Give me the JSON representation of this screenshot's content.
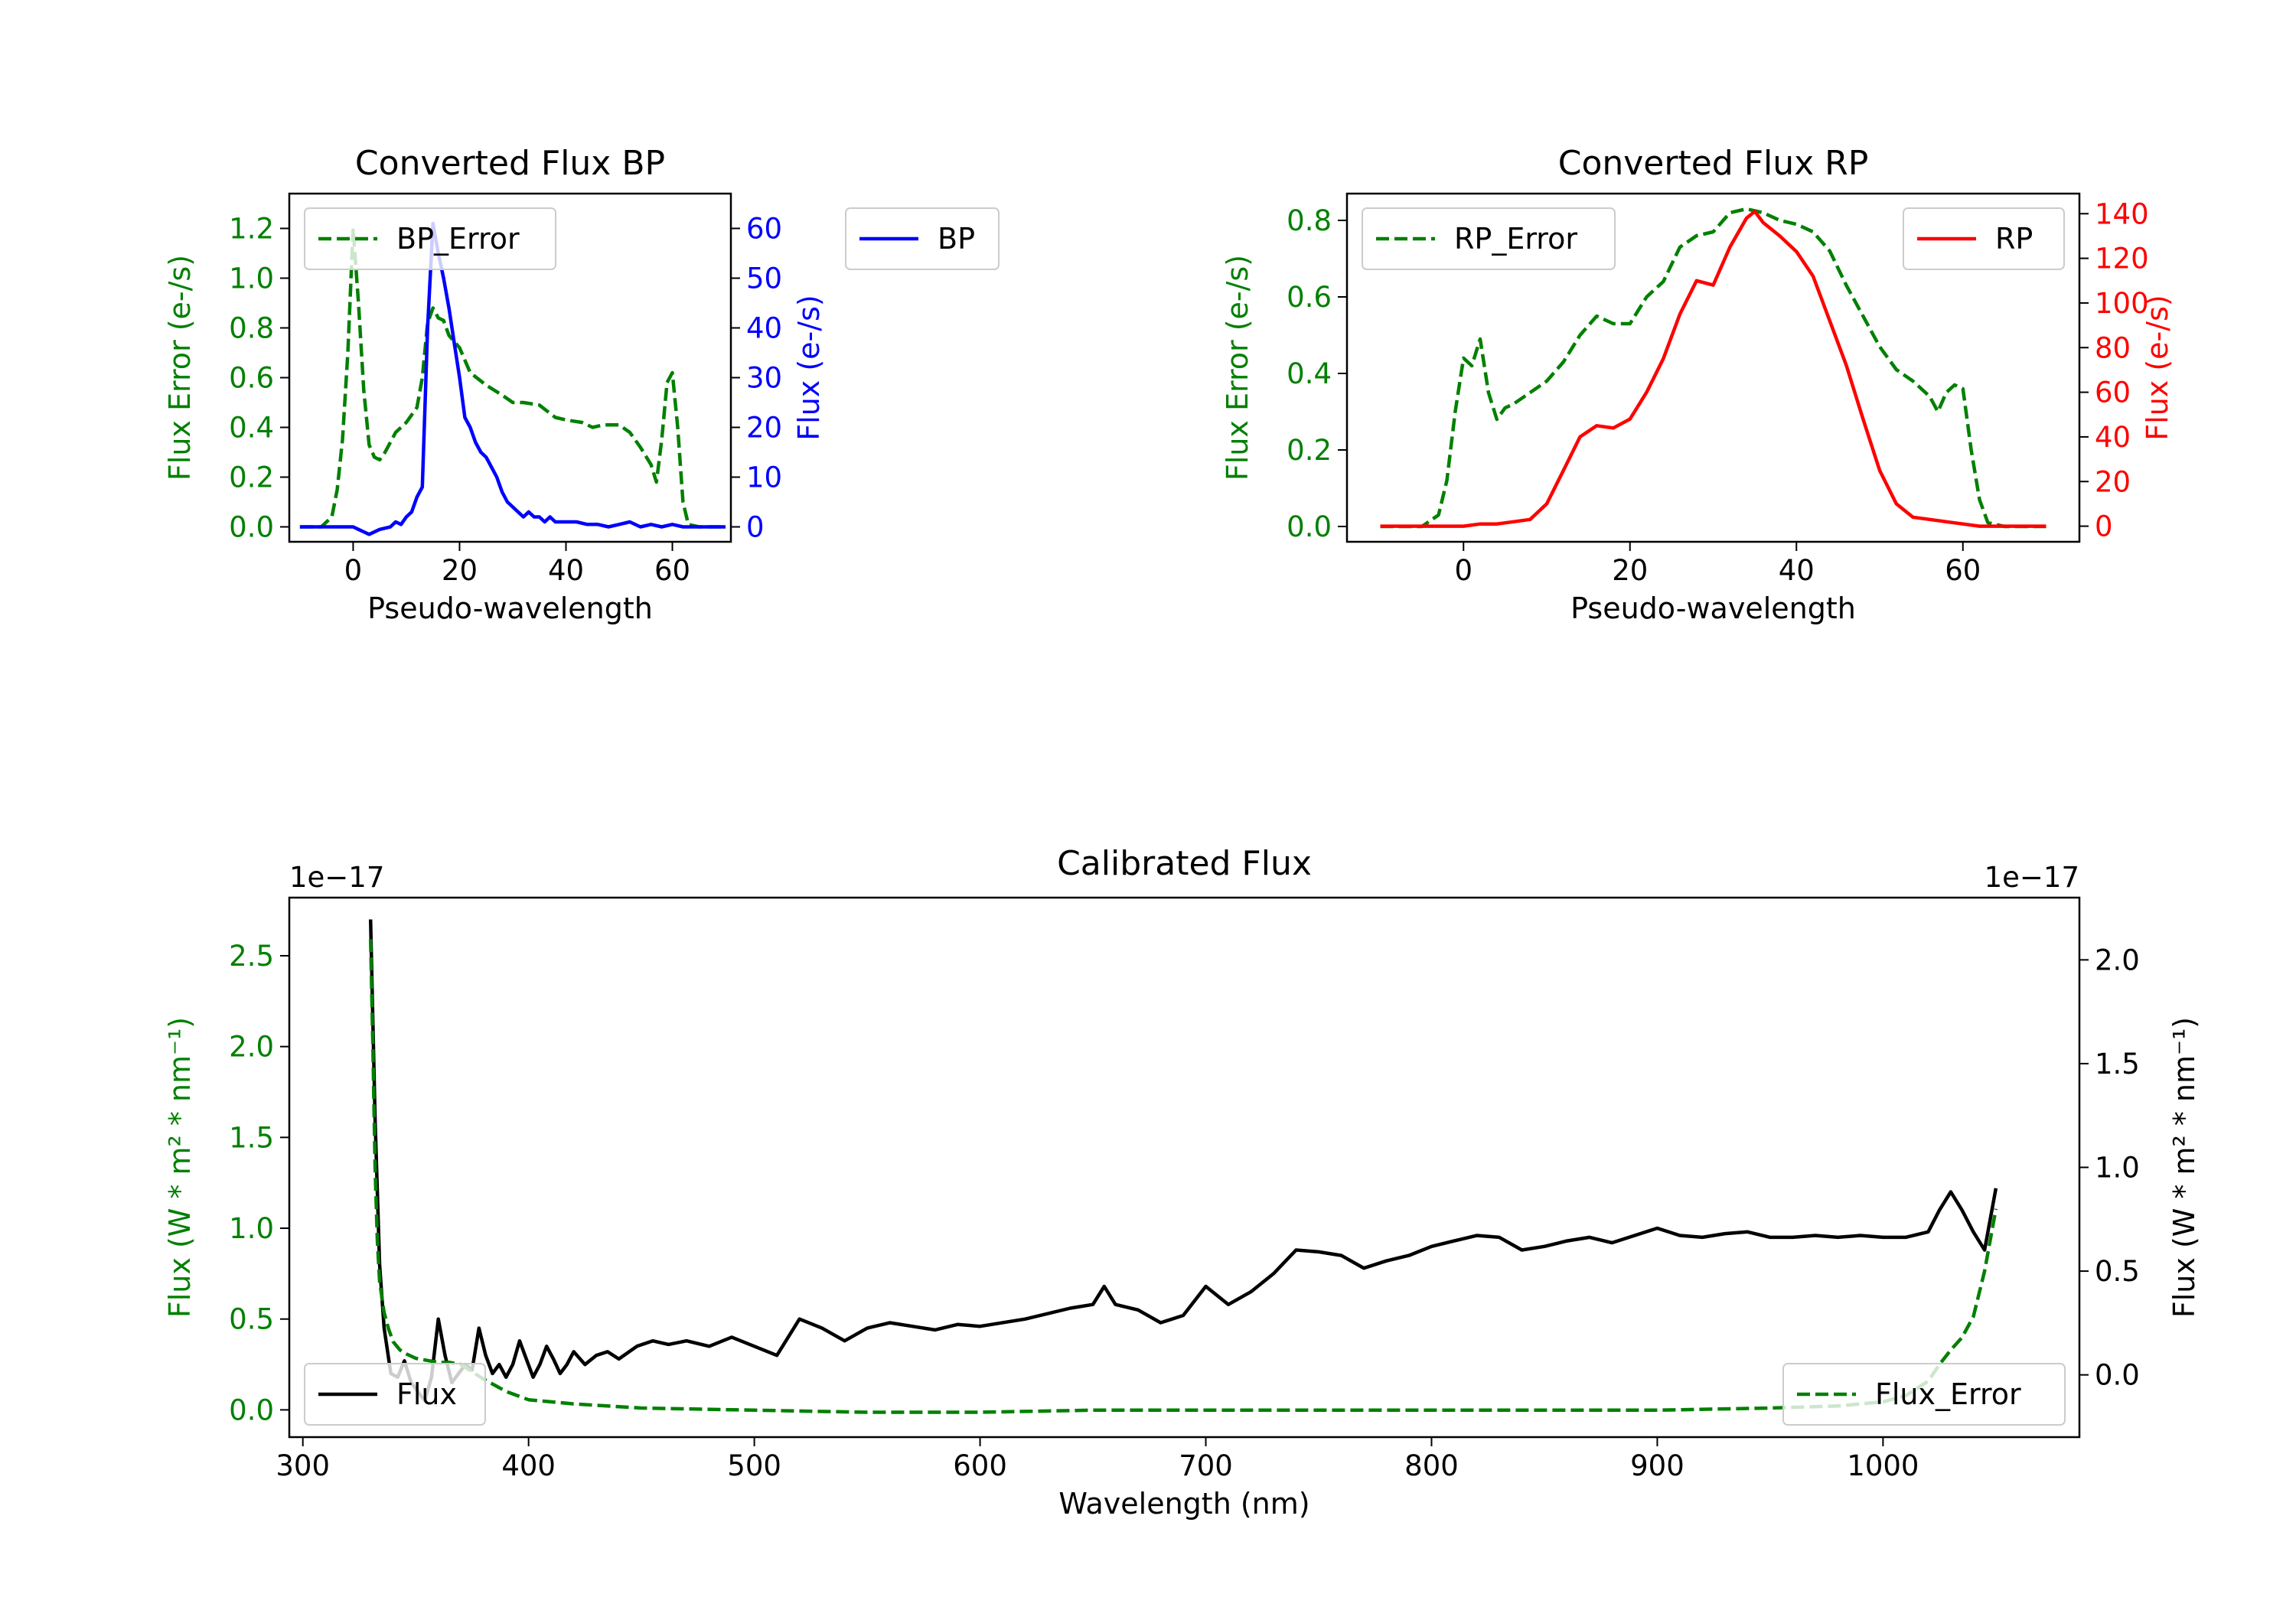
{
  "chart_data": [
    {
      "id": "bp",
      "type": "line",
      "title": "Converted Flux BP",
      "xlabel": "Pseudo-wavelength",
      "ylabel_left": "Flux Error (e-/s)",
      "ylabel_right": "Flux (e-/s)",
      "xlim": [
        -12,
        71
      ],
      "ylim_left": [
        -0.06,
        1.34
      ],
      "ylim_right": [
        -3,
        67
      ],
      "xticks": [
        0,
        20,
        40,
        60
      ],
      "yticks_left": [
        0.0,
        0.2,
        0.4,
        0.6,
        0.8,
        1.0,
        1.2
      ],
      "yticks_right": [
        0,
        10,
        20,
        30,
        40,
        50,
        60
      ],
      "left_color": "#008000",
      "right_color": "#0000ff",
      "legend_left": "BP_Error",
      "legend_right": "BP",
      "series": [
        {
          "name": "BP_Error",
          "axis": "left",
          "color": "#008000",
          "dash": true,
          "x": [
            -10,
            -6,
            -4,
            -3,
            -2,
            -1,
            0,
            1,
            2,
            3,
            4,
            5,
            6,
            8,
            10,
            12,
            13,
            14,
            15,
            16,
            17,
            18,
            20,
            22,
            25,
            28,
            30,
            32,
            35,
            38,
            40,
            43,
            45,
            47,
            50,
            52,
            54,
            56,
            57,
            58,
            59,
            60,
            61,
            62,
            63,
            65,
            70
          ],
          "y": [
            0.0,
            0.0,
            0.04,
            0.15,
            0.35,
            0.7,
            1.2,
            0.9,
            0.55,
            0.33,
            0.28,
            0.27,
            0.3,
            0.38,
            0.42,
            0.48,
            0.6,
            0.82,
            0.88,
            0.84,
            0.83,
            0.77,
            0.72,
            0.62,
            0.57,
            0.53,
            0.5,
            0.5,
            0.49,
            0.44,
            0.43,
            0.42,
            0.4,
            0.41,
            0.41,
            0.38,
            0.32,
            0.25,
            0.18,
            0.35,
            0.58,
            0.62,
            0.4,
            0.1,
            0.01,
            0.0,
            0.0
          ]
        },
        {
          "name": "BP",
          "axis": "right",
          "color": "#0000ff",
          "dash": false,
          "x": [
            -10,
            -5,
            -2,
            0,
            1,
            2,
            3,
            5,
            7,
            8,
            9,
            10,
            11,
            12,
            13,
            14,
            15,
            16,
            17,
            18,
            19,
            20,
            21,
            22,
            23,
            24,
            25,
            26,
            27,
            28,
            29,
            30,
            31,
            32,
            33,
            34,
            35,
            36,
            37,
            38,
            40,
            42,
            44,
            46,
            48,
            50,
            52,
            54,
            56,
            58,
            60,
            62,
            65,
            70
          ],
          "y": [
            0,
            0,
            0,
            0,
            -0.5,
            -1,
            -1.5,
            -0.5,
            0,
            1,
            0.5,
            2,
            3,
            6,
            8,
            40,
            61,
            55,
            50,
            44,
            37,
            30,
            22,
            20,
            17,
            15,
            14,
            12,
            10,
            7,
            5,
            4,
            3,
            2,
            3,
            2,
            2,
            1,
            2,
            1,
            1,
            1,
            0.5,
            0.5,
            0,
            0.5,
            1,
            0,
            0.5,
            0,
            0.5,
            0,
            0,
            0
          ]
        }
      ]
    },
    {
      "id": "rp",
      "type": "line",
      "title": "Converted Flux RP",
      "xlabel": "Pseudo-wavelength",
      "ylabel_left": "Flux Error (e-/s)",
      "ylabel_right": "Flux (e-/s)",
      "xlim": [
        -14,
        74
      ],
      "ylim_left": [
        -0.04,
        0.87
      ],
      "ylim_right": [
        -7,
        149
      ],
      "xticks": [
        0,
        20,
        40,
        60
      ],
      "yticks_left": [
        0.0,
        0.2,
        0.4,
        0.6,
        0.8
      ],
      "yticks_right": [
        0,
        20,
        40,
        60,
        80,
        100,
        120,
        140
      ],
      "left_color": "#008000",
      "right_color": "#ff0000",
      "legend_left": "RP_Error",
      "legend_right": "RP",
      "series": [
        {
          "name": "RP_Error",
          "axis": "left",
          "color": "#008000",
          "dash": true,
          "x": [
            -10,
            -5,
            -3,
            -2,
            -1,
            0,
            1,
            2,
            3,
            4,
            5,
            6,
            8,
            10,
            12,
            14,
            16,
            18,
            20,
            22,
            24,
            26,
            28,
            30,
            32,
            34,
            36,
            38,
            40,
            42,
            44,
            46,
            48,
            50,
            52,
            54,
            56,
            57,
            58,
            59,
            60,
            61,
            62,
            63,
            65,
            70
          ],
          "y": [
            0.0,
            0.0,
            0.03,
            0.12,
            0.3,
            0.44,
            0.42,
            0.49,
            0.35,
            0.28,
            0.31,
            0.32,
            0.35,
            0.38,
            0.43,
            0.5,
            0.55,
            0.53,
            0.53,
            0.6,
            0.64,
            0.73,
            0.76,
            0.77,
            0.82,
            0.83,
            0.82,
            0.8,
            0.79,
            0.77,
            0.72,
            0.63,
            0.55,
            0.47,
            0.41,
            0.38,
            0.34,
            0.3,
            0.35,
            0.37,
            0.36,
            0.2,
            0.07,
            0.01,
            0.0,
            0.0
          ]
        },
        {
          "name": "RP",
          "axis": "right",
          "color": "#ff0000",
          "dash": false,
          "x": [
            -10,
            0,
            2,
            4,
            6,
            8,
            10,
            12,
            14,
            16,
            18,
            20,
            22,
            24,
            26,
            28,
            30,
            32,
            34,
            35,
            36,
            38,
            40,
            42,
            44,
            46,
            48,
            50,
            52,
            54,
            56,
            58,
            60,
            62,
            65,
            70
          ],
          "y": [
            0,
            0,
            1,
            1,
            2,
            3,
            10,
            25,
            40,
            45,
            44,
            48,
            60,
            75,
            95,
            110,
            108,
            125,
            138,
            141,
            136,
            130,
            123,
            112,
            92,
            72,
            48,
            25,
            10,
            4,
            3,
            2,
            1,
            0,
            0,
            0
          ]
        }
      ]
    },
    {
      "id": "cal",
      "type": "line",
      "title": "Calibrated Flux",
      "xlabel": "Wavelength (nm)",
      "ylabel_left": "Flux (W * m² * nm⁻¹)",
      "ylabel_right": "Flux (W * m² * nm⁻¹)",
      "offset_left": "1e−17",
      "offset_right": "1e−17",
      "xlim": [
        294,
        1087
      ],
      "ylim_left": [
        -0.15,
        2.82
      ],
      "ylim_right": [
        -0.3,
        2.3
      ],
      "xticks": [
        300,
        400,
        500,
        600,
        700,
        800,
        900,
        1000
      ],
      "yticks_left": [
        0.0,
        0.5,
        1.0,
        1.5,
        2.0,
        2.5
      ],
      "yticks_right": [
        0.0,
        0.5,
        1.0,
        1.5,
        2.0
      ],
      "left_color": "#008000",
      "right_color": "#000000",
      "legend_left": "Flux",
      "legend_right": "Flux_Error",
      "series": [
        {
          "name": "Flux",
          "axis": "left",
          "color": "#000000",
          "dash": false,
          "x": [
            330,
            332,
            334,
            336,
            339,
            342,
            345,
            348,
            351,
            354,
            357,
            360,
            363,
            366,
            369,
            372,
            375,
            378,
            381,
            384,
            387,
            390,
            393,
            396,
            399,
            402,
            405,
            408,
            411,
            414,
            417,
            420,
            425,
            430,
            435,
            440,
            448,
            455,
            462,
            470,
            480,
            490,
            500,
            510,
            520,
            530,
            540,
            550,
            560,
            570,
            580,
            590,
            600,
            620,
            640,
            650,
            655,
            660,
            670,
            680,
            690,
            700,
            710,
            720,
            730,
            740,
            750,
            760,
            770,
            780,
            790,
            800,
            810,
            820,
            830,
            840,
            850,
            860,
            870,
            880,
            890,
            900,
            910,
            920,
            930,
            940,
            950,
            960,
            970,
            980,
            990,
            1000,
            1010,
            1020,
            1025,
            1030,
            1035,
            1040,
            1045,
            1050
          ],
          "y": [
            2.7,
            1.6,
            0.8,
            0.45,
            0.2,
            0.18,
            0.27,
            0.15,
            0.1,
            0.05,
            0.18,
            0.5,
            0.3,
            0.15,
            0.2,
            0.25,
            0.22,
            0.45,
            0.3,
            0.2,
            0.25,
            0.18,
            0.25,
            0.38,
            0.28,
            0.18,
            0.25,
            0.35,
            0.28,
            0.2,
            0.25,
            0.32,
            0.25,
            0.3,
            0.32,
            0.28,
            0.35,
            0.38,
            0.36,
            0.38,
            0.35,
            0.4,
            0.35,
            0.3,
            0.5,
            0.45,
            0.38,
            0.45,
            0.48,
            0.46,
            0.44,
            0.47,
            0.46,
            0.5,
            0.56,
            0.58,
            0.68,
            0.58,
            0.55,
            0.48,
            0.52,
            0.68,
            0.58,
            0.65,
            0.75,
            0.88,
            0.87,
            0.85,
            0.78,
            0.82,
            0.85,
            0.9,
            0.93,
            0.96,
            0.95,
            0.88,
            0.9,
            0.93,
            0.95,
            0.92,
            0.96,
            1.0,
            0.96,
            0.95,
            0.97,
            0.98,
            0.95,
            0.95,
            0.96,
            0.95,
            0.96,
            0.95,
            0.95,
            0.98,
            1.1,
            1.2,
            1.1,
            0.98,
            0.88,
            1.22
          ]
        },
        {
          "name": "Flux_Error",
          "axis": "right",
          "color": "#008000",
          "dash": true,
          "x": [
            330,
            331,
            332,
            333,
            334,
            336,
            338,
            340,
            343,
            346,
            350,
            355,
            360,
            365,
            370,
            380,
            390,
            400,
            420,
            450,
            500,
            550,
            600,
            650,
            700,
            750,
            800,
            850,
            900,
            950,
            980,
            1000,
            1010,
            1020,
            1025,
            1030,
            1035,
            1040,
            1045,
            1050
          ],
          "y": [
            2.1,
            1.6,
            1.0,
            0.65,
            0.45,
            0.3,
            0.22,
            0.16,
            0.12,
            0.1,
            0.08,
            0.07,
            0.06,
            0.06,
            0.05,
            -0.02,
            -0.08,
            -0.12,
            -0.14,
            -0.16,
            -0.17,
            -0.18,
            -0.18,
            -0.17,
            -0.17,
            -0.17,
            -0.17,
            -0.17,
            -0.17,
            -0.16,
            -0.15,
            -0.13,
            -0.1,
            -0.03,
            0.05,
            0.12,
            0.18,
            0.28,
            0.5,
            0.8
          ]
        }
      ]
    }
  ]
}
